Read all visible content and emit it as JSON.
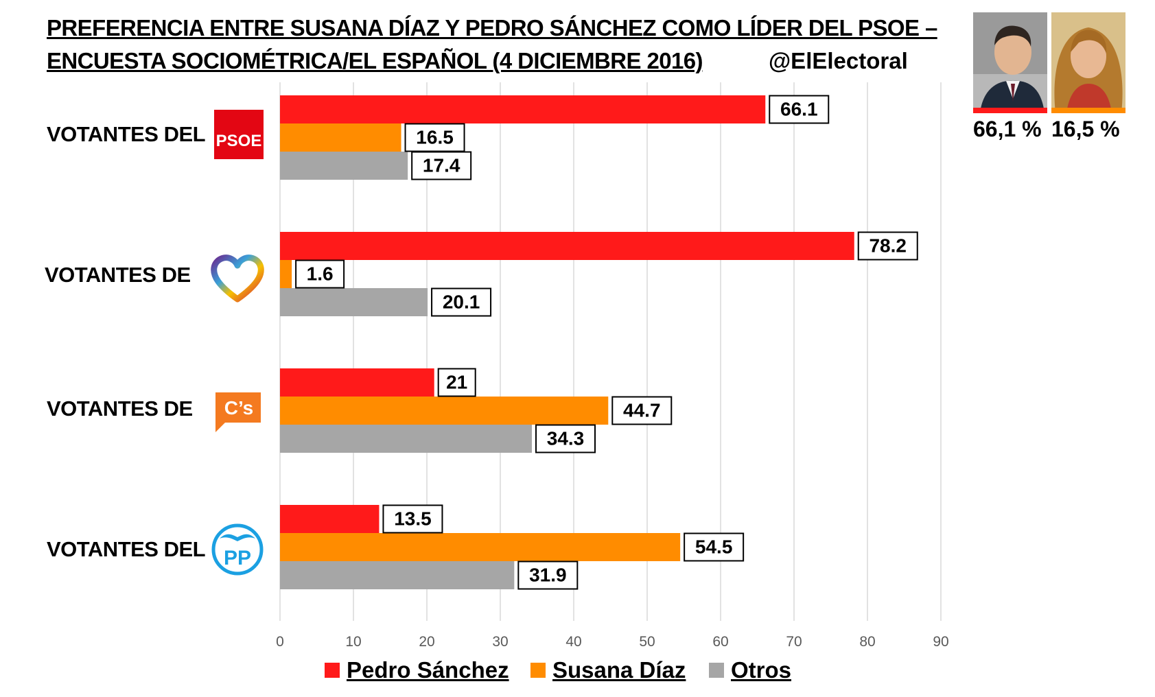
{
  "header": {
    "title_line1": "PREFERENCIA ENTRE SUSANA DÍAZ Y PEDRO SÁNCHEZ COMO LÍDER DEL PSOE –",
    "title_line2": "ENCUESTA SOCIOMÉTRICA/EL ESPAÑOL (4 DICIEMBRE 2016)",
    "handle": "@ElElectoral"
  },
  "rows": [
    {
      "label": "VOTANTES DEL",
      "logo": "psoe-logo",
      "logo_text": "PSOE"
    },
    {
      "label": "VOTANTES DE",
      "logo": "podemos-heart-logo"
    },
    {
      "label": "VOTANTES DE",
      "logo": "ciudadanos-logo",
      "logo_text": "C’s"
    },
    {
      "label": "VOTANTES DEL",
      "logo": "pp-logo",
      "logo_text": "PP"
    }
  ],
  "photos": [
    {
      "name": "pedro-sanchez-photo",
      "pct": "66,1 %",
      "bar_color": "#ff1a1a"
    },
    {
      "name": "susana-diaz-photo",
      "pct": "16,5 %",
      "bar_color": "#ff8c00"
    }
  ],
  "legend": [
    {
      "name": "Pedro Sánchez",
      "color": "#ff1a1a"
    },
    {
      "name": "Susana Díaz",
      "color": "#ff8c00"
    },
    {
      "name": "Otros",
      "color": "#a6a6a6"
    }
  ],
  "chart_data": {
    "type": "bar",
    "orientation": "horizontal",
    "title": "PREFERENCIA ENTRE SUSANA DÍAZ Y PEDRO SÁNCHEZ COMO LÍDER DEL PSOE – ENCUESTA SOCIOMÉTRICA/EL ESPAÑOL (4 DICIEMBRE 2016)",
    "categories": [
      "VOTANTES DEL PSOE",
      "VOTANTES DE PODEMOS",
      "VOTANTES DE C’s",
      "VOTANTES DEL PP"
    ],
    "series": [
      {
        "name": "Pedro Sánchez",
        "color": "#ff1a1a",
        "values": [
          66.1,
          78.2,
          21,
          13.5
        ],
        "labels": [
          "66.1",
          "78.2",
          "21",
          "13.5"
        ]
      },
      {
        "name": "Susana Díaz",
        "color": "#ff8c00",
        "values": [
          16.5,
          1.6,
          44.7,
          54.5
        ],
        "labels": [
          "16.5",
          "1.6",
          "44.7",
          "54.5"
        ]
      },
      {
        "name": "Otros",
        "color": "#a6a6a6",
        "values": [
          17.4,
          20.1,
          34.3,
          31.9
        ],
        "labels": [
          "17.4",
          "20.1",
          "34.3",
          "31.9"
        ]
      }
    ],
    "xlim": [
      0,
      90
    ],
    "xticks": [
      "0",
      "10",
      "20",
      "30",
      "40",
      "50",
      "60",
      "70",
      "80",
      "90"
    ],
    "grid": true,
    "legend_position": "bottom"
  }
}
